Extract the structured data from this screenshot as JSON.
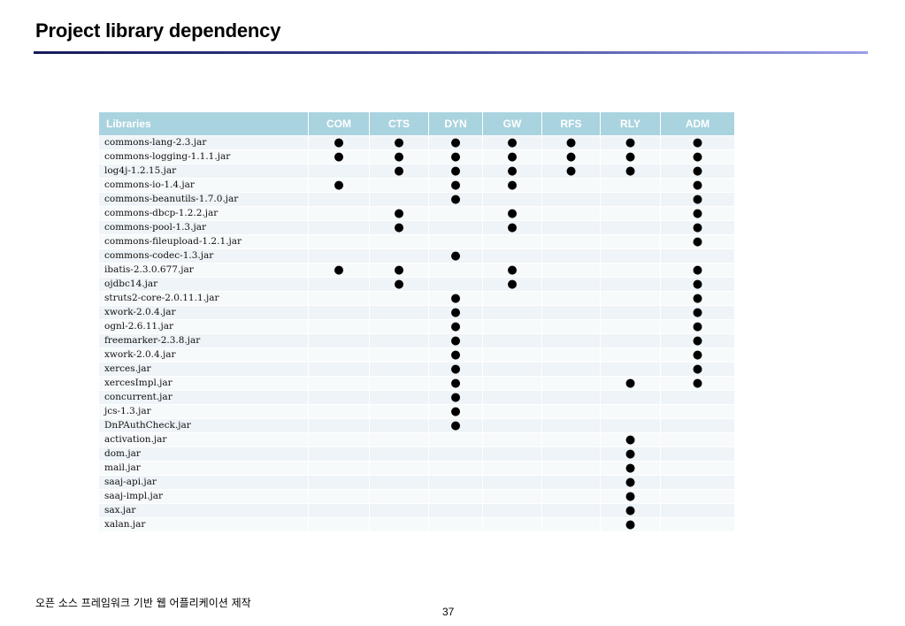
{
  "title": "Project library dependency",
  "table": {
    "columns": [
      "Libraries",
      "COM",
      "CTS",
      "DYN",
      "GW",
      "RFS",
      "RLY",
      "ADM"
    ],
    "mark_symbol": "●",
    "rows": [
      {
        "library": "commons-lang-2.3.jar",
        "deps": [
          1,
          1,
          1,
          1,
          1,
          1,
          1
        ]
      },
      {
        "library": "commons-logging-1.1.1.jar",
        "deps": [
          1,
          1,
          1,
          1,
          1,
          1,
          1
        ]
      },
      {
        "library": "log4j-1.2.15.jar",
        "deps": [
          0,
          1,
          1,
          1,
          1,
          1,
          1
        ]
      },
      {
        "library": "commons-io-1.4.jar",
        "deps": [
          1,
          0,
          1,
          1,
          0,
          0,
          1
        ]
      },
      {
        "library": "commons-beanutils-1.7.0.jar",
        "deps": [
          0,
          0,
          1,
          0,
          0,
          0,
          1
        ]
      },
      {
        "library": "commons-dbcp-1.2.2.jar",
        "deps": [
          0,
          1,
          0,
          1,
          0,
          0,
          1
        ]
      },
      {
        "library": "commons-pool-1.3.jar",
        "deps": [
          0,
          1,
          0,
          1,
          0,
          0,
          1
        ]
      },
      {
        "library": "commons-fileupload-1.2.1.jar",
        "deps": [
          0,
          0,
          0,
          0,
          0,
          0,
          1
        ]
      },
      {
        "library": "commons-codec-1.3.jar",
        "deps": [
          0,
          0,
          1,
          0,
          0,
          0,
          0
        ]
      },
      {
        "library": "ibatis-2.3.0.677.jar",
        "deps": [
          1,
          1,
          0,
          1,
          0,
          0,
          1
        ]
      },
      {
        "library": "ojdbc14.jar",
        "deps": [
          0,
          1,
          0,
          1,
          0,
          0,
          1
        ]
      },
      {
        "library": "struts2-core-2.0.11.1.jar",
        "deps": [
          0,
          0,
          1,
          0,
          0,
          0,
          1
        ]
      },
      {
        "library": "xwork-2.0.4.jar",
        "deps": [
          0,
          0,
          1,
          0,
          0,
          0,
          1
        ]
      },
      {
        "library": "ognl-2.6.11.jar",
        "deps": [
          0,
          0,
          1,
          0,
          0,
          0,
          1
        ]
      },
      {
        "library": "freemarker-2.3.8.jar",
        "deps": [
          0,
          0,
          1,
          0,
          0,
          0,
          1
        ]
      },
      {
        "library": "xwork-2.0.4.jar",
        "deps": [
          0,
          0,
          1,
          0,
          0,
          0,
          1
        ]
      },
      {
        "library": "xerces.jar",
        "deps": [
          0,
          0,
          1,
          0,
          0,
          0,
          1
        ]
      },
      {
        "library": "xercesImpl.jar",
        "deps": [
          0,
          0,
          1,
          0,
          0,
          1,
          1
        ]
      },
      {
        "library": "concurrent.jar",
        "deps": [
          0,
          0,
          1,
          0,
          0,
          0,
          0
        ]
      },
      {
        "library": "jcs-1.3.jar",
        "deps": [
          0,
          0,
          1,
          0,
          0,
          0,
          0
        ]
      },
      {
        "library": "DnPAuthCheck.jar",
        "deps": [
          0,
          0,
          1,
          0,
          0,
          0,
          0
        ]
      },
      {
        "library": "activation.jar",
        "deps": [
          0,
          0,
          0,
          0,
          0,
          1,
          0
        ]
      },
      {
        "library": "dom.jar",
        "deps": [
          0,
          0,
          0,
          0,
          0,
          1,
          0
        ]
      },
      {
        "library": "mail.jar",
        "deps": [
          0,
          0,
          0,
          0,
          0,
          1,
          0
        ]
      },
      {
        "library": "saaj-api.jar",
        "deps": [
          0,
          0,
          0,
          0,
          0,
          1,
          0
        ]
      },
      {
        "library": "saaj-impl.jar",
        "deps": [
          0,
          0,
          0,
          0,
          0,
          1,
          0
        ]
      },
      {
        "library": "sax.jar",
        "deps": [
          0,
          0,
          0,
          0,
          0,
          1,
          0
        ]
      },
      {
        "library": "xalan.jar",
        "deps": [
          0,
          0,
          0,
          0,
          0,
          1,
          0
        ]
      }
    ]
  },
  "footer": {
    "text": "오픈 소스 프레임워크 기반 웹 어플리케이션 제작",
    "page_number": "37"
  }
}
